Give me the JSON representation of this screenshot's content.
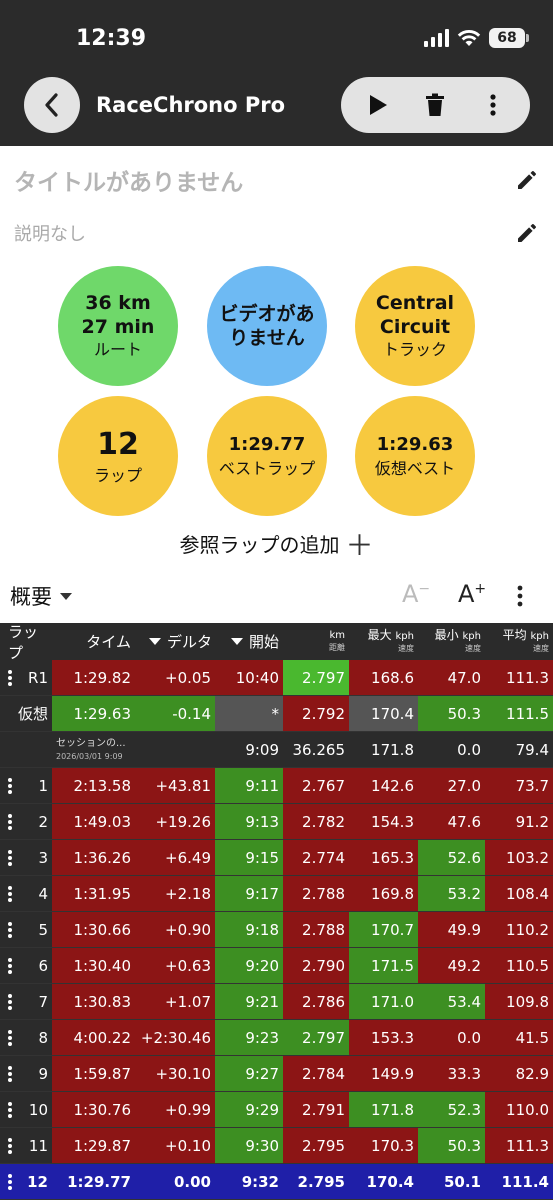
{
  "status": {
    "time": "12:39",
    "battery": "68"
  },
  "header": {
    "title": "RaceChrono Pro"
  },
  "session": {
    "title": "タイトルがありません",
    "description": "説明なし"
  },
  "circles": {
    "route": {
      "line1": "36 km",
      "line2": "27 min",
      "label": "ルート"
    },
    "video": {
      "line1": "ビデオがあ",
      "line2": "りません"
    },
    "track": {
      "line1": "Central",
      "line2": "Circuit",
      "label": "トラック"
    },
    "laps": {
      "value": "12",
      "label": "ラップ"
    },
    "best": {
      "value": "1:29.77",
      "label": "ベストラップ"
    },
    "virtual": {
      "value": "1:29.63",
      "label": "仮想ベスト"
    }
  },
  "reference_lap": {
    "label": "参照ラップの追加",
    "plus": "＋"
  },
  "summary": {
    "label": "概要",
    "font_minus": "A",
    "font_plus": "A",
    "minus_sign": "−",
    "plus_sign": "+"
  },
  "columns": {
    "lap": "ラップ",
    "time": "タイム",
    "delta": "デルタ",
    "start": "開始",
    "dist_unit": "km",
    "dist_sub": "距離",
    "max_label": "最大",
    "max_unit": "kph",
    "max_sub": "速度",
    "min_label": "最小",
    "min_unit": "kph",
    "min_sub": "速度",
    "avg_label": "平均",
    "avg_unit": "kph",
    "avg_sub": "速度"
  },
  "colors": {
    "red": "#8c1515",
    "green": "#3d8f22",
    "blue": "#1f1fa8",
    "header": "#2b2b2b"
  },
  "rows": [
    {
      "type": "ref",
      "lap": "R1",
      "time": "1:29.82",
      "delta": "+0.05",
      "start": "10:40",
      "dist": "2.797",
      "max": "168.6",
      "min": "47.0",
      "avg": "111.3",
      "c": [
        "red",
        "red",
        "red",
        "bgreen",
        "red",
        "red",
        "red"
      ]
    },
    {
      "type": "virtual",
      "lap": "仮想",
      "time": "1:29.63",
      "delta": "-0.14",
      "start": "*",
      "dist": "2.792",
      "max": "170.4",
      "min": "50.3",
      "avg": "111.5",
      "c": [
        "green",
        "green",
        "gray",
        "red",
        "gray",
        "green",
        "green"
      ]
    },
    {
      "type": "session",
      "lap": "",
      "label": "セッションの...",
      "date": "2026/03/01 9:09",
      "start": "9:09",
      "dist": "36.265",
      "max": "171.8",
      "min": "0.0",
      "avg": "79.4"
    },
    {
      "type": "lap",
      "lap": "1",
      "time": "2:13.58",
      "delta": "+43.81",
      "start": "9:11",
      "dist": "2.767",
      "max": "142.6",
      "min": "27.0",
      "avg": "73.7",
      "c": [
        "red",
        "red",
        "green",
        "red",
        "red",
        "red",
        "red"
      ]
    },
    {
      "type": "lap",
      "lap": "2",
      "time": "1:49.03",
      "delta": "+19.26",
      "start": "9:13",
      "dist": "2.782",
      "max": "154.3",
      "min": "47.6",
      "avg": "91.2",
      "c": [
        "red",
        "red",
        "green",
        "red",
        "red",
        "red",
        "red"
      ]
    },
    {
      "type": "lap",
      "lap": "3",
      "time": "1:36.26",
      "delta": "+6.49",
      "start": "9:15",
      "dist": "2.774",
      "max": "165.3",
      "min": "52.6",
      "avg": "103.2",
      "c": [
        "red",
        "red",
        "green",
        "red",
        "red",
        "green",
        "red"
      ]
    },
    {
      "type": "lap",
      "lap": "4",
      "time": "1:31.95",
      "delta": "+2.18",
      "start": "9:17",
      "dist": "2.788",
      "max": "169.8",
      "min": "53.2",
      "avg": "108.4",
      "c": [
        "red",
        "red",
        "green",
        "red",
        "red",
        "green",
        "red"
      ]
    },
    {
      "type": "lap",
      "lap": "5",
      "time": "1:30.66",
      "delta": "+0.90",
      "start": "9:18",
      "dist": "2.788",
      "max": "170.7",
      "min": "49.9",
      "avg": "110.2",
      "c": [
        "red",
        "red",
        "green",
        "red",
        "green",
        "red",
        "red"
      ]
    },
    {
      "type": "lap",
      "lap": "6",
      "time": "1:30.40",
      "delta": "+0.63",
      "start": "9:20",
      "dist": "2.790",
      "max": "171.5",
      "min": "49.2",
      "avg": "110.5",
      "c": [
        "red",
        "red",
        "green",
        "red",
        "green",
        "red",
        "red"
      ]
    },
    {
      "type": "lap",
      "lap": "7",
      "time": "1:30.83",
      "delta": "+1.07",
      "start": "9:21",
      "dist": "2.786",
      "max": "171.0",
      "min": "53.4",
      "avg": "109.8",
      "c": [
        "red",
        "red",
        "green",
        "red",
        "green",
        "green",
        "red"
      ]
    },
    {
      "type": "lap",
      "lap": "8",
      "time": "4:00.22",
      "delta": "+2:30.46",
      "start": "9:23",
      "dist": "2.797",
      "max": "153.3",
      "min": "0.0",
      "avg": "41.5",
      "c": [
        "red",
        "red",
        "green",
        "green",
        "red",
        "red",
        "red"
      ]
    },
    {
      "type": "lap",
      "lap": "9",
      "time": "1:59.87",
      "delta": "+30.10",
      "start": "9:27",
      "dist": "2.784",
      "max": "149.9",
      "min": "33.3",
      "avg": "82.9",
      "c": [
        "red",
        "red",
        "green",
        "red",
        "red",
        "red",
        "red"
      ]
    },
    {
      "type": "lap",
      "lap": "10",
      "time": "1:30.76",
      "delta": "+0.99",
      "start": "9:29",
      "dist": "2.791",
      "max": "171.8",
      "min": "52.3",
      "avg": "110.0",
      "c": [
        "red",
        "red",
        "green",
        "red",
        "green",
        "green",
        "red"
      ]
    },
    {
      "type": "lap",
      "lap": "11",
      "time": "1:29.87",
      "delta": "+0.10",
      "start": "9:30",
      "dist": "2.795",
      "max": "170.3",
      "min": "50.3",
      "avg": "111.3",
      "c": [
        "red",
        "red",
        "green",
        "red",
        "red",
        "green",
        "red"
      ]
    },
    {
      "type": "best",
      "lap": "12",
      "time": "1:29.77",
      "delta": "0.00",
      "start": "9:32",
      "dist": "2.795",
      "max": "170.4",
      "min": "50.1",
      "avg": "111.4",
      "c": [
        "blue",
        "blue",
        "blue",
        "blue",
        "blue",
        "blue",
        "blue"
      ]
    }
  ]
}
